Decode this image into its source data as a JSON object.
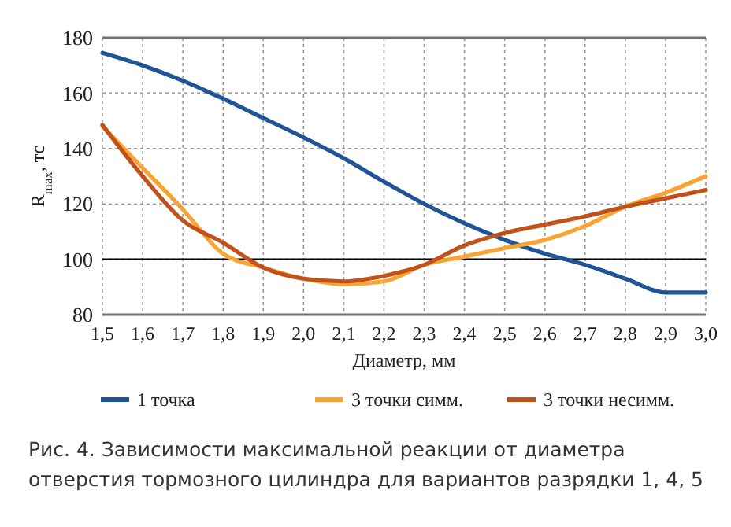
{
  "chart_data": {
    "type": "line",
    "xlabel": "Диаметр, мм",
    "ylabel": "R$_{max}$, тс",
    "x": [
      1.5,
      1.6,
      1.7,
      1.8,
      1.9,
      2.0,
      2.1,
      2.2,
      2.3,
      2.4,
      2.5,
      2.6,
      2.7,
      2.8,
      2.9,
      3.0
    ],
    "series": [
      {
        "name": "1 точка",
        "color": "#1f5597",
        "values": [
          174.5,
          170,
          164.5,
          158,
          151,
          144,
          136.5,
          128,
          120,
          113,
          107,
          102,
          98,
          93,
          88,
          88
        ]
      },
      {
        "name": "3 точки симм.",
        "color": "#f9a332",
        "values": [
          148,
          133,
          118,
          102,
          97,
          93,
          91,
          92,
          98,
          101,
          104,
          107,
          112,
          119,
          124,
          130
        ]
      },
      {
        "name": "3 точки несимм.",
        "color": "#c0531c",
        "values": [
          148.5,
          130,
          114,
          106,
          97,
          93,
          92,
          94,
          98,
          105,
          109.5,
          112.5,
          115.5,
          119,
          122,
          125
        ]
      }
    ],
    "xlim": [
      1.5,
      3.0
    ],
    "ylim": [
      80,
      180
    ],
    "xticks": [
      {
        "value": 1.5,
        "label": "1,5"
      },
      {
        "value": 1.6,
        "label": "1,6"
      },
      {
        "value": 1.7,
        "label": "1,7"
      },
      {
        "value": 1.8,
        "label": "1,8"
      },
      {
        "value": 1.9,
        "label": "1,9"
      },
      {
        "value": 2.0,
        "label": "2,0"
      },
      {
        "value": 2.1,
        "label": "2,1"
      },
      {
        "value": 2.2,
        "label": "2,2"
      },
      {
        "value": 2.3,
        "label": "2,3"
      },
      {
        "value": 2.4,
        "label": "2,4"
      },
      {
        "value": 2.5,
        "label": "2,5"
      },
      {
        "value": 2.6,
        "label": "2,6"
      },
      {
        "value": 2.7,
        "label": "2,7"
      },
      {
        "value": 2.8,
        "label": "2,8"
      },
      {
        "value": 2.9,
        "label": "2,9"
      },
      {
        "value": 3.0,
        "label": "3,0"
      }
    ],
    "yticks": [
      80,
      100,
      120,
      140,
      160,
      180
    ],
    "ref_lines": [
      {
        "axis": "y",
        "value": 100,
        "color": "#000000",
        "line_style": "solid"
      }
    ],
    "grid": true,
    "legend": "bottom",
    "marker": "none",
    "line_style": "solid",
    "annotations": [
      "Рис. 4. Зависимости максимальной реакции от диаметра отверстия тормозного цилиндра для вариантов разрядки 1, 4, 5"
    ]
  }
}
